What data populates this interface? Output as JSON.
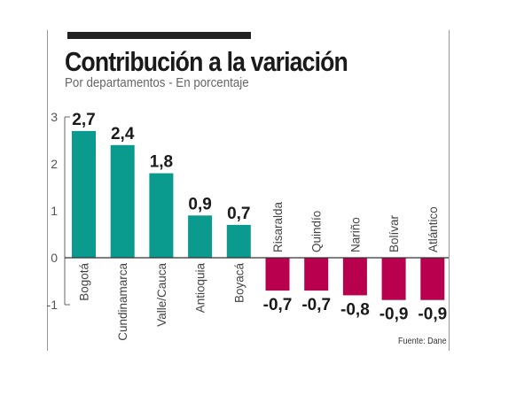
{
  "chart_data": {
    "type": "bar",
    "title": "Contribución a la variación",
    "subtitle": "Por departamentos - En porcentaje",
    "source": "Fuente: Dane",
    "categories": [
      "Bogotá",
      "Cundinamarca",
      "Valle/Cauca",
      "Antioquia",
      "Boyacá",
      "Risaralda",
      "Quindío",
      "Nariño",
      "Bolívar",
      "Atlántico"
    ],
    "values": [
      2.7,
      2.4,
      1.8,
      0.9,
      0.7,
      -0.7,
      -0.7,
      -0.8,
      -0.9,
      -0.9
    ],
    "data_labels": [
      "2,7",
      "2,4",
      "1,8",
      "0,9",
      "0,7",
      "-0,7",
      "-0,7",
      "-0,8",
      "-0,9",
      "-0,9"
    ],
    "ylim": [
      -1,
      3
    ],
    "yticks": [
      3,
      2,
      1,
      0,
      -1
    ],
    "ytick_labels": [
      "3",
      "2",
      "1",
      "0",
      "-1"
    ],
    "grid": false,
    "colors": {
      "positive": "#0a9a8e",
      "negative": "#b8004f"
    }
  }
}
